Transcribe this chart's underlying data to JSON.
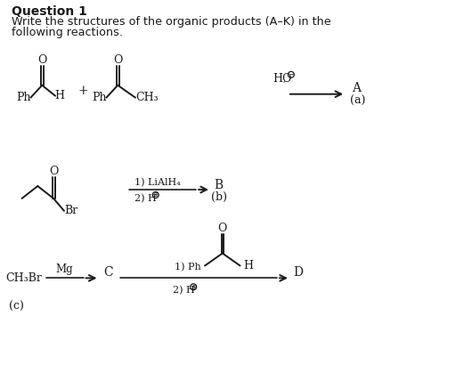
{
  "title_line1": "Question 1",
  "title_line2": "Write the structures of the organic products (A–K) in the",
  "title_line3": "following reactions.",
  "bg_color": "#ffffff",
  "text_color": "#1a1a1a",
  "rxn_a": {
    "mol1_ph": "Ph",
    "mol1_h": "H",
    "plus": "+",
    "mol2_ph": "Ph",
    "mol2_ch3": "CH₃",
    "reagent": "HO",
    "product": "A",
    "label": "(a)"
  },
  "rxn_b": {
    "reagent1": "1) LiAlH₄",
    "reagent2": "2) H",
    "product": "B",
    "label": "(b)",
    "br": "Br"
  },
  "rxn_c": {
    "reactant": "CH₃Br",
    "mg": "Mg",
    "intermediate": "C",
    "reagent1_text": "1) Ph",
    "reagent2_text": "2) H",
    "h_label": "H",
    "product": "D",
    "label": "(c)"
  }
}
